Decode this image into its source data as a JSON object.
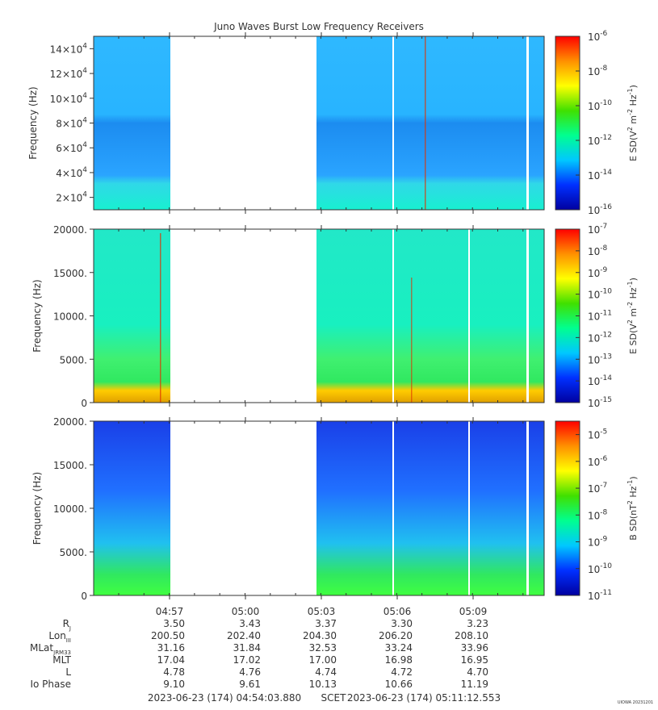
{
  "title": "Juno Waves Burst Low Frequency Receivers",
  "footer": {
    "start": "2023-06-23 (174) 04:54:03.880",
    "label": "SCET",
    "end": "2023-06-23 (174) 05:11:12.553",
    "credit": "UIOWA 20231201"
  },
  "colors": {
    "colormap": [
      "#0000a0",
      "#0030ff",
      "#00c8ff",
      "#00ff90",
      "#40e000",
      "#ffff00",
      "#ff9000",
      "#ff0000"
    ],
    "spectrogram_sparse": "#2fb8ff",
    "band_low": "#30d8e8",
    "band_dense": "#18f0d0",
    "b_blue": "#1a40e8",
    "b_green": "#30e860",
    "stripe_yellow": "#ffcc00",
    "stripe_red": "#e03000"
  },
  "chart_data": [
    {
      "type": "heatmap",
      "panel": "top",
      "ylabel": "Frequency (Hz)",
      "yticks": [
        {
          "mantissa": "2×10",
          "exp": "4",
          "value": 20000
        },
        {
          "mantissa": "4×10",
          "exp": "4",
          "value": 40000
        },
        {
          "mantissa": "6×10",
          "exp": "4",
          "value": 60000
        },
        {
          "mantissa": "8×10",
          "exp": "4",
          "value": 80000
        },
        {
          "mantissa": "10×10",
          "exp": "4",
          "value": 100000
        },
        {
          "mantissa": "12×10",
          "exp": "4",
          "value": 120000
        },
        {
          "mantissa": "14×10",
          "exp": "4",
          "value": 140000
        }
      ],
      "ylim": [
        10000,
        150000
      ],
      "colorbar_label_parts": [
        "E SD(V",
        "2",
        " m",
        "-2",
        " Hz",
        "-1",
        ")"
      ],
      "colorbar_ticks": [
        {
          "base": "10",
          "exp": "-6"
        },
        {
          "base": "10",
          "exp": "-8"
        },
        {
          "base": "10",
          "exp": "-10"
        },
        {
          "base": "10",
          "exp": "-12"
        },
        {
          "base": "10",
          "exp": "-14"
        },
        {
          "base": "10",
          "exp": "-16"
        }
      ],
      "colorbar_range": [
        -16,
        -6
      ],
      "data_gaps": [
        [
          "04:57",
          "05:02:50"
        ]
      ]
    },
    {
      "type": "heatmap",
      "panel": "middle",
      "ylabel": "Frequency (Hz)",
      "yticks": [
        {
          "label": "0",
          "value": 0
        },
        {
          "label": "5000.",
          "value": 5000
        },
        {
          "label": "10000.",
          "value": 10000
        },
        {
          "label": "15000.",
          "value": 15000
        },
        {
          "label": "20000.",
          "value": 20000
        }
      ],
      "ylim": [
        0,
        20000
      ],
      "colorbar_label_parts": [
        "E SD(V",
        "2",
        " m",
        "-2",
        " Hz",
        "-1",
        ")"
      ],
      "colorbar_ticks": [
        {
          "base": "10",
          "exp": "-7"
        },
        {
          "base": "10",
          "exp": "-8"
        },
        {
          "base": "10",
          "exp": "-9"
        },
        {
          "base": "10",
          "exp": "-10"
        },
        {
          "base": "10",
          "exp": "-11"
        },
        {
          "base": "10",
          "exp": "-12"
        },
        {
          "base": "10",
          "exp": "-13"
        },
        {
          "base": "10",
          "exp": "-14"
        },
        {
          "base": "10",
          "exp": "-15"
        }
      ],
      "colorbar_range": [
        -15,
        -7
      ]
    },
    {
      "type": "heatmap",
      "panel": "bottom",
      "ylabel": "Frequency (Hz)",
      "yticks": [
        {
          "label": "0",
          "value": 0
        },
        {
          "label": "5000.",
          "value": 5000
        },
        {
          "label": "10000.",
          "value": 10000
        },
        {
          "label": "15000.",
          "value": 15000
        },
        {
          "label": "20000.",
          "value": 20000
        }
      ],
      "ylim": [
        0,
        20000
      ],
      "colorbar_label_parts": [
        "B SD(nT",
        "2",
        " Hz",
        "-1",
        ")"
      ],
      "colorbar_ticks": [
        {
          "base": "10",
          "exp": "-5"
        },
        {
          "base": "10",
          "exp": "-6"
        },
        {
          "base": "10",
          "exp": "-7"
        },
        {
          "base": "10",
          "exp": "-8"
        },
        {
          "base": "10",
          "exp": "-9"
        },
        {
          "base": "10",
          "exp": "-10"
        },
        {
          "base": "10",
          "exp": "-11"
        }
      ],
      "colorbar_range": [
        -11,
        -4.5
      ]
    }
  ],
  "time_axis": {
    "labels": [
      "04:57",
      "05:00",
      "05:03",
      "05:06",
      "05:09"
    ],
    "rows": [
      {
        "name": "R",
        "sub": "J",
        "values": [
          "3.50",
          "3.43",
          "3.37",
          "3.30",
          "3.23"
        ]
      },
      {
        "name": "Lon",
        "sub": "III",
        "values": [
          "200.50",
          "202.40",
          "204.30",
          "206.20",
          "208.10"
        ]
      },
      {
        "name": "MLat",
        "sub": "JRM33",
        "values": [
          "31.16",
          "31.84",
          "32.53",
          "33.24",
          "33.96"
        ]
      },
      {
        "name": "MLT",
        "sub": "",
        "values": [
          "17.04",
          "17.02",
          "17.00",
          "16.98",
          "16.95"
        ]
      },
      {
        "name": "L",
        "sub": "",
        "values": [
          "4.78",
          "4.76",
          "4.74",
          "4.72",
          "4.70"
        ]
      },
      {
        "name": "Io Phase",
        "sub": "",
        "values": [
          "9.10",
          "9.61",
          "10.13",
          "10.66",
          "11.19"
        ]
      }
    ]
  }
}
